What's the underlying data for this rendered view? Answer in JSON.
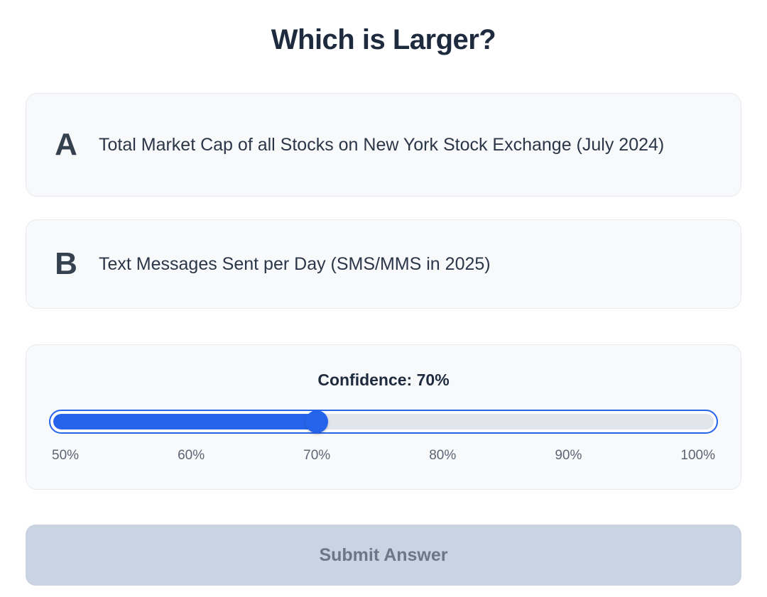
{
  "title": "Which is Larger?",
  "options": [
    {
      "letter": "A",
      "text": "Total Market Cap of all Stocks on New York Stock Exchange (July 2024)"
    },
    {
      "letter": "B",
      "text": "Text Messages Sent per Day (SMS/MMS in 2025)"
    }
  ],
  "confidence": {
    "label": "Confidence: 70%",
    "value": 70,
    "min": 50,
    "max": 100,
    "ticks": [
      "50%",
      "60%",
      "70%",
      "80%",
      "90%",
      "100%"
    ]
  },
  "submit": {
    "label": "Submit Answer",
    "enabled": false
  },
  "colors": {
    "accent_blue": "#2563eb",
    "title_text": "#1e2a3d",
    "card_bg": "#f8f9fb",
    "card_border": "#e8ebf1",
    "track_empty": "#e2e5ec",
    "tick_text": "#5b6573",
    "submit_bg": "#c9d3e1",
    "submit_text": "#6b7689"
  }
}
